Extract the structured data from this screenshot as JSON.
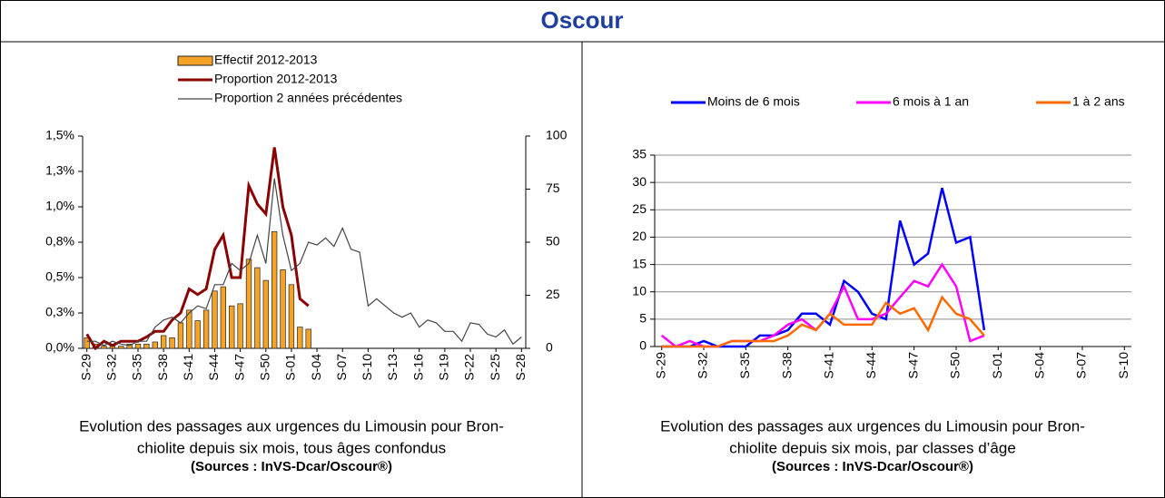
{
  "title": "Oscour",
  "chart_data": [
    {
      "type": "combo",
      "caption": [
        "Evolution des passages aux urgences  du Limousin pour Bron-",
        "chiolite depuis six mois, tous âges confondus"
      ],
      "source": "(Sources : InVS-Dcar/Oscour®)",
      "categories": [
        "S-29",
        null,
        null,
        "S-32",
        null,
        null,
        "S-35",
        null,
        null,
        "S-38",
        null,
        null,
        "S-41",
        null,
        null,
        "S-44",
        null,
        null,
        "S-47",
        null,
        null,
        "S-50",
        null,
        null,
        "S-01",
        null,
        null,
        "S-04",
        null,
        null,
        "S-07",
        null,
        null,
        "S-10",
        null,
        null,
        "S-13",
        null,
        null,
        "S-16",
        null,
        null,
        "S-19",
        null,
        null,
        "S-22",
        null,
        null,
        "S-25",
        null,
        null,
        "S-28"
      ],
      "series": [
        {
          "name": "Effectif 2012-2013",
          "kind": "bar",
          "axis": "y2",
          "color": "#f5a327",
          "values": [
            5,
            2,
            1,
            1,
            1,
            2,
            2,
            2,
            3,
            6,
            5,
            12,
            18,
            13,
            18,
            27,
            29,
            20,
            21,
            42,
            38,
            32,
            55,
            37,
            30,
            10,
            9,
            null,
            null,
            null,
            null,
            null,
            null,
            null,
            null,
            null,
            null,
            null,
            null,
            null,
            null,
            null,
            null,
            null,
            null,
            null,
            null,
            null,
            null,
            null,
            null,
            null
          ]
        },
        {
          "name": "Proportion 2012-2013",
          "kind": "line",
          "color": "#8b0000",
          "values": [
            0.1,
            0.0,
            0.05,
            0.02,
            0.05,
            0.05,
            0.05,
            0.08,
            0.12,
            0.12,
            0.2,
            0.25,
            0.42,
            0.38,
            0.42,
            0.7,
            0.8,
            0.5,
            0.5,
            1.15,
            1.02,
            0.95,
            1.42,
            1.0,
            0.8,
            0.35,
            0.3,
            null,
            null,
            null,
            null,
            null,
            null,
            null,
            null,
            null,
            null,
            null,
            null,
            null,
            null,
            null,
            null,
            null,
            null,
            null,
            null,
            null,
            null,
            null,
            null,
            null
          ]
        },
        {
          "name": "Proportion 2 années précédentes",
          "kind": "line",
          "color": "#444444",
          "values": [
            0.05,
            0.05,
            0.02,
            0.05,
            0.03,
            0.02,
            0.05,
            0.05,
            0.15,
            0.2,
            0.22,
            0.18,
            0.25,
            0.3,
            0.28,
            0.45,
            0.45,
            0.6,
            0.55,
            0.6,
            0.8,
            0.6,
            1.2,
            0.8,
            0.55,
            0.6,
            0.75,
            0.73,
            0.78,
            0.72,
            0.85,
            0.7,
            0.68,
            0.3,
            0.35,
            0.3,
            0.25,
            0.22,
            0.25,
            0.15,
            0.2,
            0.18,
            0.12,
            0.12,
            0.05,
            0.18,
            0.17,
            0.1,
            0.08,
            0.13,
            0.03,
            0.08
          ]
        }
      ],
      "ylim": [
        0,
        1.5
      ],
      "yticks": [
        {
          "value": 0,
          "label": "0,0%"
        },
        {
          "value": 0.25,
          "label": "0,3%"
        },
        {
          "value": 0.5,
          "label": "0,5%"
        },
        {
          "value": 0.75,
          "label": "0,8%"
        },
        {
          "value": 1.0,
          "label": "1,0%"
        },
        {
          "value": 1.25,
          "label": "1,3%"
        },
        {
          "value": 1.5,
          "label": "1,5%"
        }
      ],
      "y2lim": [
        0,
        100
      ],
      "y2ticks": [
        0,
        25,
        50,
        75,
        100
      ],
      "grid": false,
      "legend": "top"
    },
    {
      "type": "line",
      "caption": [
        "Evolution des passages aux urgences du Limousin pour Bron-",
        "chiolite depuis six mois, par classes d’âge"
      ],
      "source": "(Sources : InVS-Dcar/Oscour®)",
      "categories": [
        "S-29",
        null,
        null,
        "S-32",
        null,
        null,
        "S-35",
        null,
        null,
        "S-38",
        null,
        null,
        "S-41",
        null,
        null,
        "S-44",
        null,
        null,
        "S-47",
        null,
        null,
        "S-50",
        null,
        null,
        "S-01",
        null,
        null,
        "S-04",
        null,
        null,
        "S-07",
        null,
        null,
        "S-10"
      ],
      "series": [
        {
          "name": "Moins de 6 mois",
          "color": "#0000ff",
          "values": [
            0,
            0,
            0,
            1,
            0,
            0,
            0,
            2,
            2,
            3,
            6,
            6,
            4,
            12,
            10,
            6,
            5,
            23,
            15,
            17,
            29,
            19,
            20,
            3,
            null,
            null,
            null,
            null,
            null,
            null,
            null,
            null,
            null,
            null
          ]
        },
        {
          "name": "6 mois à 1 an",
          "color": "#ff00ff",
          "values": [
            2,
            0,
            1,
            0,
            0,
            1,
            1,
            1,
            2,
            4,
            5,
            3,
            6,
            11,
            5,
            5,
            6,
            9,
            12,
            11,
            15,
            11,
            1,
            2,
            null,
            null,
            null,
            null,
            null,
            null,
            null,
            null,
            null,
            null
          ]
        },
        {
          "name": "1 à 2 ans",
          "color": "#ff6a00",
          "values": [
            0,
            0,
            0,
            0,
            0,
            1,
            1,
            1,
            1,
            2,
            4,
            3,
            6,
            4,
            4,
            4,
            8,
            6,
            7,
            3,
            9,
            6,
            5,
            2,
            null,
            null,
            null,
            null,
            null,
            null,
            null,
            null,
            null,
            null
          ]
        }
      ],
      "ylim": [
        0,
        35
      ],
      "yticks": [
        0,
        5,
        10,
        15,
        20,
        25,
        30,
        35
      ],
      "grid": true,
      "legend": "top"
    }
  ]
}
